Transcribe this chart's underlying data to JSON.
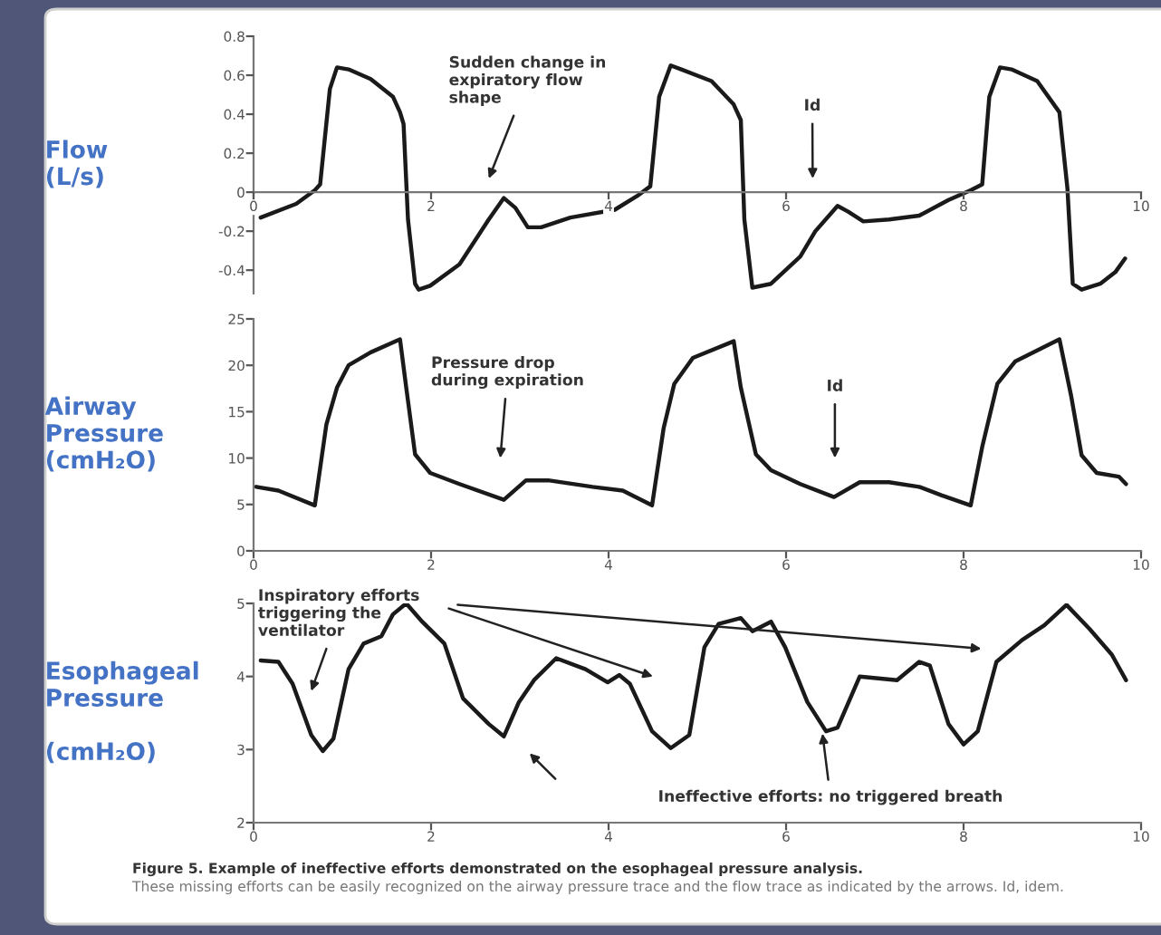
{
  "chart_data": [
    {
      "type": "line",
      "ylabel": "Flow\n(L/s)",
      "xlim": [
        0,
        10
      ],
      "ylim": [
        -0.52,
        0.8
      ],
      "xticks": [
        0,
        2,
        4,
        6,
        8,
        10
      ],
      "yticks": [
        -0.4,
        -0.2,
        0,
        0.2,
        0.4,
        0.6,
        0.8
      ],
      "grid": false,
      "legend": false,
      "marker": "none",
      "line_style": "solid",
      "series": [
        {
          "color": "#1a1a1a",
          "x": [
            0.08,
            0.48,
            0.69,
            0.75,
            0.86,
            0.94,
            1.07,
            1.32,
            1.57,
            1.65,
            1.69,
            1.74,
            1.82,
            1.86,
            1.99,
            2.32,
            2.65,
            2.82,
            2.95,
            3.09,
            3.24,
            3.57,
            4.07,
            4.32,
            4.47,
            4.57,
            4.7,
            4.82,
            5.16,
            5.41,
            5.49,
            5.53,
            5.62,
            5.83,
            6.16,
            6.33,
            6.58,
            6.7,
            6.87,
            7.16,
            7.5,
            7.83,
            8.08,
            8.21,
            8.29,
            8.41,
            8.54,
            8.83,
            9.08,
            9.17,
            9.23,
            9.33,
            9.54,
            9.71,
            9.82
          ],
          "values": [
            -0.13,
            -0.06,
            0.01,
            0.04,
            0.53,
            0.64,
            0.63,
            0.58,
            0.49,
            0.41,
            0.35,
            -0.14,
            -0.47,
            -0.5,
            -0.48,
            -0.37,
            -0.14,
            -0.03,
            -0.08,
            -0.18,
            -0.18,
            -0.13,
            -0.09,
            -0.02,
            0.03,
            0.49,
            0.65,
            0.63,
            0.57,
            0.45,
            0.37,
            -0.14,
            -0.49,
            -0.47,
            -0.33,
            -0.2,
            -0.07,
            -0.1,
            -0.15,
            -0.14,
            -0.12,
            -0.04,
            0.01,
            0.04,
            0.49,
            0.64,
            0.63,
            0.57,
            0.41,
            0.02,
            -0.47,
            -0.5,
            -0.47,
            -0.41,
            -0.34
          ]
        }
      ],
      "annotations": [
        "Sudden change in\nexpiratory flow\nshape",
        "Id"
      ]
    },
    {
      "type": "line",
      "ylabel": "Airway\nPressure\n(cmH₂O)",
      "xlim": [
        0,
        10
      ],
      "ylim": [
        0,
        25
      ],
      "xticks": [
        0,
        2,
        4,
        6,
        8,
        10
      ],
      "yticks": [
        0,
        5,
        10,
        15,
        20,
        25
      ],
      "grid": false,
      "legend": false,
      "marker": "none",
      "line_style": "solid",
      "series": [
        {
          "color": "#1a1a1a",
          "x": [
            0.03,
            0.28,
            0.69,
            0.82,
            0.94,
            1.07,
            1.32,
            1.65,
            1.72,
            1.82,
            1.99,
            2.32,
            2.82,
            3.07,
            3.32,
            3.82,
            4.16,
            4.49,
            4.62,
            4.74,
            4.95,
            5.41,
            5.49,
            5.66,
            5.83,
            6.16,
            6.54,
            6.83,
            7.16,
            7.5,
            7.75,
            8.08,
            8.21,
            8.38,
            8.58,
            9.08,
            9.21,
            9.33,
            9.5,
            9.75,
            9.83
          ],
          "values": [
            6.9,
            6.5,
            4.9,
            13.6,
            17.6,
            20.0,
            21.4,
            22.8,
            17.6,
            10.4,
            8.4,
            7.2,
            5.5,
            7.6,
            7.6,
            6.9,
            6.5,
            4.9,
            13.2,
            18.0,
            20.8,
            22.6,
            17.6,
            10.4,
            8.7,
            7.2,
            5.8,
            7.4,
            7.4,
            6.9,
            6.0,
            4.9,
            11.2,
            18.0,
            20.4,
            22.8,
            16.8,
            10.3,
            8.4,
            8.0,
            7.2
          ]
        }
      ],
      "annotations": [
        "Pressure drop\nduring expiration",
        "Id"
      ]
    },
    {
      "type": "line",
      "ylabel": "Esophageal\nPressure\n\n(cmH₂O)",
      "xlim": [
        0,
        10
      ],
      "ylim": [
        2,
        5
      ],
      "xticks": [
        0,
        2,
        4,
        6,
        8,
        10
      ],
      "yticks": [
        2,
        3,
        4,
        5
      ],
      "grid": false,
      "legend": false,
      "marker": "none",
      "line_style": "solid",
      "series": [
        {
          "color": "#1a1a1a",
          "x": [
            0.08,
            0.28,
            0.44,
            0.65,
            0.78,
            0.9,
            1.07,
            1.24,
            1.44,
            1.57,
            1.72,
            1.9,
            2.15,
            2.36,
            2.65,
            2.82,
            2.99,
            3.16,
            3.41,
            3.74,
            3.99,
            4.12,
            4.24,
            4.49,
            4.7,
            4.91,
            5.08,
            5.24,
            5.49,
            5.62,
            5.83,
            5.99,
            6.24,
            6.45,
            6.58,
            6.83,
            7.25,
            7.5,
            7.62,
            7.83,
            8.0,
            8.16,
            8.37,
            8.66,
            8.91,
            9.16,
            9.42,
            9.67,
            9.83
          ],
          "values": [
            4.22,
            4.2,
            3.9,
            3.2,
            2.98,
            3.15,
            4.1,
            4.45,
            4.55,
            4.85,
            5.0,
            4.75,
            4.45,
            3.7,
            3.35,
            3.18,
            3.65,
            3.95,
            4.25,
            4.1,
            3.92,
            4.02,
            3.9,
            3.25,
            3.02,
            3.2,
            4.4,
            4.72,
            4.8,
            4.62,
            4.75,
            4.4,
            3.65,
            3.25,
            3.3,
            4.0,
            3.95,
            4.2,
            4.15,
            3.35,
            3.07,
            3.25,
            4.2,
            4.5,
            4.7,
            4.98,
            4.65,
            4.3,
            3.95
          ]
        }
      ],
      "annotations": [
        "Inspiratory efforts\ntriggering the\nventilator",
        {
          "text": "Ineffective efforts: no triggered breath",
          "x": 6.41,
          "y": 3.22
        },
        "Figure 5. Example of ineffective efforts demonstrated on the esophageal pressure analysis.",
        "These missing efforts can be easily recognized on the airway pressure trace and the flow trace as indicated by the arrows. Id, idem."
      ]
    }
  ]
}
